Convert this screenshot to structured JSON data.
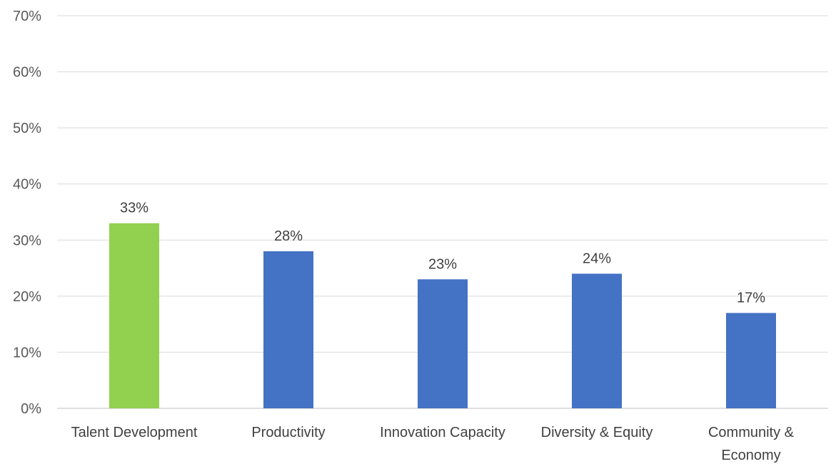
{
  "chart_data": {
    "type": "bar",
    "title": "",
    "xlabel": "",
    "ylabel": "",
    "categories": [
      "Talent Development",
      "Productivity",
      "Innovation Capacity",
      "Diversity & Equity",
      "Community & Economy"
    ],
    "category_lines": [
      [
        "Talent Development"
      ],
      [
        "Productivity"
      ],
      [
        "Innovation Capacity"
      ],
      [
        "Diversity & Equity"
      ],
      [
        "Community &",
        "Economy"
      ]
    ],
    "values": [
      33,
      28,
      23,
      24,
      17
    ],
    "data_labels": [
      "33%",
      "28%",
      "23%",
      "24%",
      "17%"
    ],
    "bar_colors": [
      "#92d050",
      "#4472c4",
      "#4472c4",
      "#4472c4",
      "#4472c4"
    ],
    "ylim": [
      0,
      70
    ],
    "yticks": [
      0,
      10,
      20,
      30,
      40,
      50,
      60,
      70
    ],
    "ytick_labels": [
      "0%",
      "10%",
      "20%",
      "30%",
      "40%",
      "50%",
      "60%",
      "70%"
    ],
    "grid": true,
    "legend": "none"
  }
}
